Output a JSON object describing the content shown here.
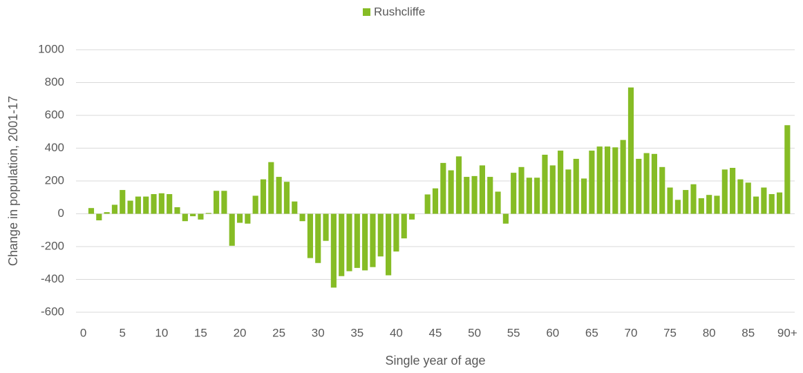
{
  "chart_data": {
    "type": "bar",
    "legend": "Rushcliffe",
    "x_label": "Single year of age",
    "y_label": "Change in population, 2001-17",
    "color": "#86bc25",
    "categories": [
      "0",
      null,
      null,
      null,
      null,
      "5",
      null,
      null,
      null,
      null,
      "10",
      null,
      null,
      null,
      null,
      "15",
      null,
      null,
      null,
      null,
      "20",
      null,
      null,
      null,
      null,
      "25",
      null,
      null,
      null,
      null,
      "30",
      null,
      null,
      null,
      null,
      "35",
      null,
      null,
      null,
      null,
      "40",
      null,
      null,
      null,
      null,
      "45",
      null,
      null,
      null,
      null,
      "50",
      null,
      null,
      null,
      null,
      "55",
      null,
      null,
      null,
      null,
      "60",
      null,
      null,
      null,
      null,
      "65",
      null,
      null,
      null,
      null,
      "70",
      null,
      null,
      null,
      null,
      "75",
      null,
      null,
      null,
      null,
      "80",
      null,
      null,
      null,
      null,
      "85",
      null,
      null,
      null,
      null,
      "90+"
    ],
    "values": [
      0,
      35,
      -40,
      10,
      55,
      145,
      80,
      105,
      105,
      120,
      125,
      120,
      40,
      -45,
      -15,
      -35,
      5,
      140,
      140,
      -195,
      -55,
      -60,
      110,
      210,
      315,
      225,
      195,
      75,
      -45,
      -270,
      -300,
      -165,
      -450,
      -380,
      -350,
      -330,
      -345,
      -325,
      -260,
      -375,
      -230,
      -150,
      -35,
      0,
      118,
      155,
      310,
      265,
      350,
      225,
      230,
      295,
      225,
      135,
      -60,
      250,
      285,
      220,
      220,
      360,
      295,
      385,
      270,
      335,
      215,
      385,
      410,
      410,
      405,
      450,
      770,
      335,
      370,
      365,
      285,
      160,
      85,
      145,
      180,
      95,
      115,
      110,
      270,
      280,
      210,
      190,
      105,
      160,
      120,
      130,
      540
    ],
    "ylim": [
      -600,
      1000
    ],
    "yticks": [
      -600,
      -400,
      -200,
      0,
      200,
      400,
      600,
      800,
      1000
    ],
    "grid": true
  }
}
